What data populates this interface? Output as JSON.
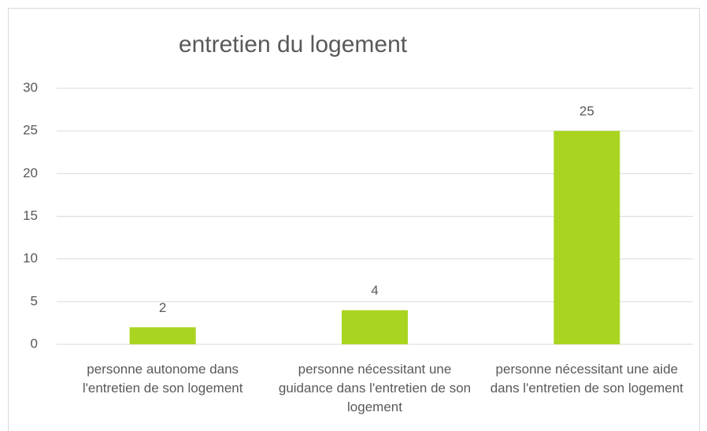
{
  "chart_data": {
    "type": "bar",
    "title": "entretien du logement",
    "categories": [
      "personne autonome dans l'entretien de son logement",
      "personne nécessitant une guidance dans l'entretien de son logement",
      "personne nécessitant une aide dans l'entretien de son logement"
    ],
    "values": [
      2,
      4,
      25
    ],
    "color": "#a9d521",
    "ylim": [
      0,
      30
    ],
    "yticks": [
      0,
      5,
      10,
      15,
      20,
      25,
      30
    ],
    "grid": true,
    "data_labels": true
  }
}
